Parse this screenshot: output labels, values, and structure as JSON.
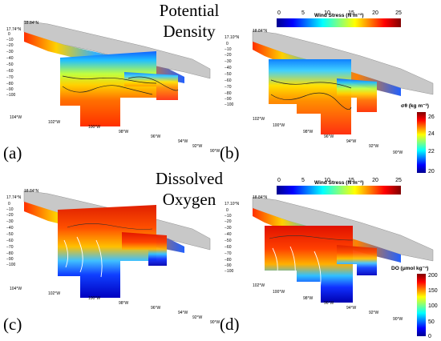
{
  "titles": {
    "row1_line1": "Potential",
    "row1_line2": "Density",
    "row2_line1": "Dissolved",
    "row2_line2": "Oxygen"
  },
  "panel_labels": {
    "a": "(a)",
    "b": "(b)",
    "c": "(c)",
    "d": "(d)"
  },
  "wind_stress_bar": {
    "title": "Wind Stress (N m⁻²)",
    "ticks": [
      "0",
      "5",
      "10",
      "15",
      "20",
      "25"
    ]
  },
  "density_bar": {
    "label": "σθ (kg m⁻³)",
    "ticks": [
      "26",
      "24",
      "22",
      "20"
    ]
  },
  "oxygen_bar": {
    "label": "DO (μmol kg⁻¹)",
    "ticks": [
      "200",
      "150",
      "100",
      "50",
      "0"
    ]
  },
  "map_labels": {
    "lat_a": "18.84°N",
    "lat_b": "17.74°N",
    "lat_b2": "17.10°N",
    "lon_a": [
      "104°W",
      "102°W",
      "100°W",
      "98°W",
      "96°W",
      "94°W",
      "92°W",
      "90°W"
    ],
    "lon_b": [
      "100°W",
      "98°W",
      "96°W",
      "94°W",
      "92°W",
      "90°W"
    ],
    "lon_b_extra": "102°W",
    "depths_a": [
      "0",
      "−10",
      "−20",
      "−30",
      "−40",
      "−50",
      "−60",
      "−70",
      "−80",
      "−90",
      "−100"
    ],
    "depths_b": [
      "0",
      "−10",
      "−20",
      "−30",
      "−40",
      "−50",
      "−60",
      "−70",
      "−80",
      "−90",
      "−100"
    ]
  },
  "colors": {
    "land": "#c8c8c8",
    "jet": [
      "#00008f",
      "#0000ff",
      "#0080ff",
      "#00ffff",
      "#80ff80",
      "#ffff00",
      "#ff8000",
      "#ff0000",
      "#800000"
    ]
  }
}
